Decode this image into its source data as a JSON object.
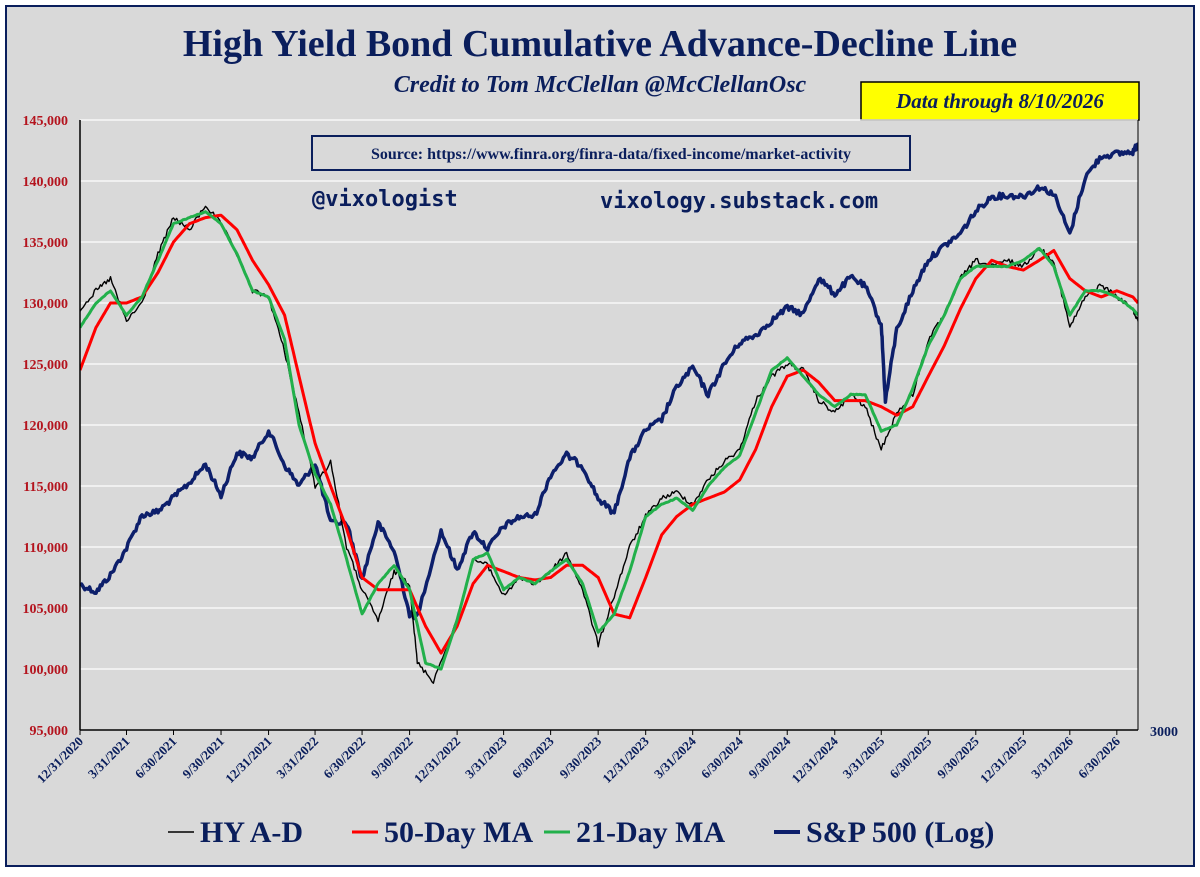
{
  "title": "High Yield Bond Cumulative Advance-Decline Line",
  "subtitle": "Credit to Tom McClellan @McClellanOsc",
  "data_through": "Data through 8/10/2026",
  "source": "Source: https://www.finra.org/finra-data/fixed-income/market-activity",
  "watermark_handle": "@vixologist",
  "watermark_site": "vixology.substack.com",
  "right_axis_label": "3000",
  "colors": {
    "background": "#d9d9d9",
    "title": "#0a1e5c",
    "hy_ad": "#000000",
    "ma50": "#ff0000",
    "ma21": "#22b04b",
    "spx": "#0d1f6b",
    "yaxis_text": "#b4141e",
    "xaxis_text": "#0a1e5c",
    "badge_bg": "#ffff00"
  },
  "chart_data": {
    "type": "line",
    "title": "High Yield Bond Cumulative Advance-Decline Line",
    "subtitle": "Credit to Tom McClellan @McClellanOsc",
    "ylim": [
      95000,
      145000
    ],
    "yticks": [
      "145,000",
      "140,000",
      "135,000",
      "130,000",
      "125,000",
      "120,000",
      "115,000",
      "110,000",
      "105,000",
      "100,000",
      "95,000"
    ],
    "xlim": [
      "12/31/2020",
      "8/10/2026"
    ],
    "xticks": [
      "12/31/2020",
      "3/31/2021",
      "6/30/2021",
      "9/30/2021",
      "12/31/2021",
      "3/31/2022",
      "6/30/2022",
      "9/30/2022",
      "12/31/2022",
      "3/31/2023",
      "6/30/2023",
      "9/30/2023",
      "12/31/2023",
      "3/31/2024",
      "6/30/2024",
      "9/30/2024",
      "12/31/2024",
      "3/31/2025",
      "6/30/2025",
      "9/30/2025",
      "12/31/2025",
      "3/31/2026",
      "6/30/2026"
    ],
    "grid": true,
    "legend_position": "bottom",
    "series": [
      {
        "name": "HY A-D",
        "axis": "left",
        "x": [
          "12/31/2020",
          "1/31/2021",
          "2/28/2021",
          "3/31/2021",
          "4/30/2021",
          "5/31/2021",
          "6/30/2021",
          "7/31/2021",
          "8/31/2021",
          "9/30/2021",
          "10/31/2021",
          "11/30/2021",
          "12/31/2021",
          "1/31/2022",
          "2/28/2022",
          "3/31/2022",
          "4/30/2022",
          "5/31/2022",
          "6/30/2022",
          "7/31/2022",
          "8/31/2022",
          "9/30/2022",
          "10/15/2022",
          "11/15/2022",
          "12/31/2022",
          "1/31/2023",
          "2/28/2023",
          "3/31/2023",
          "4/30/2023",
          "5/31/2023",
          "6/30/2023",
          "7/31/2023",
          "8/31/2023",
          "9/30/2023",
          "10/31/2023",
          "11/30/2023",
          "12/31/2023",
          "1/31/2024",
          "2/29/2024",
          "3/31/2024",
          "4/30/2024",
          "5/31/2024",
          "6/30/2024",
          "7/31/2024",
          "8/31/2024",
          "9/30/2024",
          "10/31/2024",
          "11/30/2024",
          "12/31/2024",
          "1/31/2025",
          "2/28/2025",
          "3/31/2025",
          "4/30/2025",
          "5/31/2025",
          "6/30/2025",
          "7/31/2025",
          "8/31/2025",
          "9/30/2025",
          "10/31/2025",
          "11/30/2025",
          "12/31/2025",
          "1/31/2026",
          "2/28/2026",
          "3/31/2026",
          "4/30/2026",
          "5/31/2026",
          "6/30/2026",
          "7/31/2026",
          "8/10/2026"
        ],
        "values": [
          129500,
          131000,
          132000,
          128500,
          130000,
          134000,
          137000,
          136000,
          138000,
          136500,
          134000,
          131000,
          130500,
          126000,
          121000,
          115000,
          117000,
          110000,
          106500,
          104000,
          108000,
          107000,
          100500,
          99000,
          104000,
          109000,
          108500,
          106000,
          107500,
          107000,
          108000,
          109500,
          106500,
          102000,
          106000,
          110000,
          112500,
          114000,
          114500,
          113500,
          115500,
          117000,
          118000,
          122000,
          124000,
          125000,
          124500,
          122000,
          121000,
          122500,
          121500,
          118000,
          121000,
          122500,
          127000,
          129000,
          132000,
          133500,
          133000,
          133500,
          133000,
          134500,
          133500,
          128000,
          130500,
          131500,
          130500,
          129500,
          128500
        ]
      },
      {
        "name": "50-Day MA",
        "axis": "left",
        "x": [
          "12/31/2020",
          "1/31/2021",
          "2/28/2021",
          "3/31/2021",
          "4/30/2021",
          "5/31/2021",
          "6/30/2021",
          "7/31/2021",
          "8/31/2021",
          "9/30/2021",
          "10/31/2021",
          "11/30/2021",
          "12/31/2021",
          "1/31/2022",
          "2/28/2022",
          "3/31/2022",
          "4/30/2022",
          "5/31/2022",
          "6/30/2022",
          "7/31/2022",
          "8/31/2022",
          "9/30/2022",
          "10/31/2022",
          "11/30/2022",
          "12/31/2022",
          "1/31/2023",
          "2/28/2023",
          "3/31/2023",
          "4/30/2023",
          "5/31/2023",
          "6/30/2023",
          "7/31/2023",
          "8/31/2023",
          "9/30/2023",
          "10/31/2023",
          "11/30/2023",
          "12/31/2023",
          "1/31/2024",
          "2/29/2024",
          "3/31/2024",
          "4/30/2024",
          "5/31/2024",
          "6/30/2024",
          "7/31/2024",
          "8/31/2024",
          "9/30/2024",
          "10/31/2024",
          "11/30/2024",
          "12/31/2024",
          "1/31/2025",
          "2/28/2025",
          "3/31/2025",
          "4/30/2025",
          "5/31/2025",
          "6/30/2025",
          "7/31/2025",
          "8/31/2025",
          "9/30/2025",
          "10/31/2025",
          "11/30/2025",
          "12/31/2025",
          "1/31/2026",
          "2/28/2026",
          "3/31/2026",
          "4/30/2026",
          "5/31/2026",
          "6/30/2026",
          "7/31/2026",
          "8/10/2026"
        ],
        "values": [
          124500,
          128000,
          130000,
          130000,
          130500,
          132500,
          135000,
          136500,
          137000,
          137200,
          136000,
          133500,
          131500,
          129000,
          124000,
          118500,
          115000,
          111500,
          107500,
          106500,
          106500,
          106500,
          103500,
          101300,
          103500,
          107000,
          108500,
          108000,
          107500,
          107300,
          107500,
          108500,
          108500,
          107500,
          104500,
          104200,
          107500,
          111000,
          112500,
          113500,
          114000,
          114500,
          115500,
          118000,
          121500,
          124000,
          124500,
          123500,
          122000,
          122000,
          122000,
          121500,
          120800,
          121500,
          124000,
          126500,
          129500,
          132000,
          133500,
          133000,
          132700,
          133500,
          134300,
          132000,
          131000,
          130500,
          131000,
          130500,
          130000
        ]
      },
      {
        "name": "21-Day MA",
        "axis": "left",
        "x": [
          "12/31/2020",
          "1/31/2021",
          "2/28/2021",
          "3/31/2021",
          "4/30/2021",
          "5/31/2021",
          "6/30/2021",
          "7/31/2021",
          "8/31/2021",
          "9/30/2021",
          "10/31/2021",
          "11/30/2021",
          "12/31/2021",
          "1/31/2022",
          "2/28/2022",
          "3/31/2022",
          "4/30/2022",
          "5/31/2022",
          "6/30/2022",
          "7/31/2022",
          "8/31/2022",
          "9/30/2022",
          "10/31/2022",
          "11/30/2022",
          "12/31/2022",
          "1/31/2023",
          "2/28/2023",
          "3/31/2023",
          "4/30/2023",
          "5/31/2023",
          "6/30/2023",
          "7/31/2023",
          "8/31/2023",
          "9/30/2023",
          "10/31/2023",
          "11/30/2023",
          "12/31/2023",
          "1/31/2024",
          "2/29/2024",
          "3/31/2024",
          "4/30/2024",
          "5/31/2024",
          "6/30/2024",
          "7/31/2024",
          "8/31/2024",
          "9/30/2024",
          "10/31/2024",
          "11/30/2024",
          "12/31/2024",
          "1/31/2025",
          "2/28/2025",
          "3/31/2025",
          "4/30/2025",
          "5/31/2025",
          "6/30/2025",
          "7/31/2025",
          "8/31/2025",
          "9/30/2025",
          "10/31/2025",
          "11/30/2025",
          "12/31/2025",
          "1/31/2026",
          "2/28/2026",
          "3/31/2026",
          "4/30/2026",
          "5/31/2026",
          "6/30/2026",
          "7/31/2026",
          "8/10/2026"
        ],
        "values": [
          128000,
          130000,
          131000,
          129000,
          130500,
          133500,
          136500,
          137000,
          137500,
          136500,
          134000,
          131000,
          130500,
          127000,
          120000,
          116000,
          113500,
          109000,
          104500,
          107000,
          108500,
          106500,
          100500,
          100000,
          104000,
          109000,
          109500,
          106500,
          107500,
          107000,
          108000,
          109000,
          107000,
          103000,
          104500,
          108000,
          112500,
          113500,
          114000,
          113000,
          115000,
          116500,
          117500,
          121000,
          124500,
          125500,
          124000,
          122500,
          121500,
          122500,
          122500,
          119500,
          120000,
          123000,
          126500,
          129000,
          132000,
          133000,
          133000,
          133000,
          133500,
          134500,
          133000,
          129000,
          131000,
          131000,
          130500,
          129500,
          129000
        ]
      },
      {
        "name": "S&P 500 (Log)",
        "axis": "right",
        "x": [
          "12/31/2020",
          "1/31/2021",
          "2/28/2021",
          "3/31/2021",
          "4/30/2021",
          "5/31/2021",
          "6/30/2021",
          "7/31/2021",
          "8/31/2021",
          "9/30/2021",
          "10/31/2021",
          "11/30/2021",
          "12/31/2021",
          "1/31/2022",
          "2/28/2022",
          "3/31/2022",
          "4/30/2022",
          "5/31/2022",
          "6/30/2022",
          "7/31/2022",
          "8/31/2022",
          "9/30/2022",
          "10/15/2022",
          "11/30/2022",
          "12/31/2022",
          "1/31/2023",
          "2/28/2023",
          "3/31/2023",
          "4/30/2023",
          "5/31/2023",
          "6/30/2023",
          "7/31/2023",
          "8/31/2023",
          "9/30/2023",
          "10/31/2023",
          "11/30/2023",
          "12/31/2023",
          "1/31/2024",
          "2/29/2024",
          "3/31/2024",
          "4/30/2024",
          "5/31/2024",
          "6/30/2024",
          "7/31/2024",
          "8/31/2024",
          "9/30/2024",
          "10/31/2024",
          "11/30/2024",
          "12/31/2024",
          "1/31/2025",
          "2/28/2025",
          "3/31/2025",
          "4/8/2025",
          "4/30/2025",
          "5/31/2025",
          "6/30/2025",
          "7/31/2025",
          "8/31/2025",
          "9/30/2025",
          "10/31/2025",
          "11/30/2025",
          "12/31/2025",
          "1/31/2026",
          "2/28/2026",
          "3/31/2026",
          "4/30/2026",
          "5/31/2026",
          "6/30/2026",
          "7/31/2026",
          "8/10/2026"
        ],
        "values": [
          3756,
          3714,
          3811,
          3973,
          4181,
          4204,
          4298,
          4395,
          4523,
          4308,
          4605,
          4567,
          4766,
          4516,
          4374,
          4530,
          4132,
          4132,
          3785,
          4130,
          3955,
          3586,
          3577,
          4080,
          3840,
          4077,
          3970,
          4109,
          4169,
          4180,
          4450,
          4589,
          4508,
          4288,
          4194,
          4568,
          4770,
          4846,
          5096,
          5254,
          5036,
          5278,
          5460,
          5522,
          5648,
          5762,
          5705,
          6032,
          5882,
          6041,
          5955,
          5612,
          4983,
          5569,
          5912,
          6205,
          6339,
          6460,
          6688,
          6840,
          6850,
          6845,
          6940,
          6870,
          6450,
          7050,
          7280,
          7310,
          7330,
          7420
        ]
      }
    ]
  },
  "legend": [
    {
      "label": "HY A-D",
      "color": "#000000"
    },
    {
      "label": "50-Day MA",
      "color": "#ff0000"
    },
    {
      "label": "21-Day MA",
      "color": "#22b04b"
    },
    {
      "label": "S&P 500 (Log)",
      "color": "#0d1f6b"
    }
  ]
}
